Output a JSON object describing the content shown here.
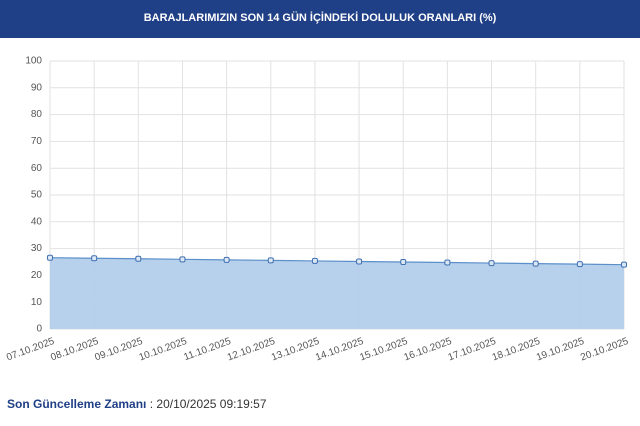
{
  "chart_data": {
    "type": "area",
    "title": "BARAJLARIMIZIN SON 14 GÜN İÇİNDEKİ DOLULUK ORANLARI (%)",
    "categories": [
      "07.10.2025",
      "08.10.2025",
      "09.10.2025",
      "10.10.2025",
      "11.10.2025",
      "12.10.2025",
      "13.10.2025",
      "14.10.2025",
      "15.10.2025",
      "16.10.2025",
      "17.10.2025",
      "18.10.2025",
      "19.10.2025",
      "20.10.2025"
    ],
    "values": [
      26.6,
      26.4,
      26.2,
      26.0,
      25.8,
      25.6,
      25.4,
      25.2,
      25.0,
      24.8,
      24.6,
      24.4,
      24.2,
      24.0
    ],
    "color": "#5b8fc9",
    "fill": "#b3cfec",
    "ylim": [
      0,
      100
    ],
    "yticks": [
      0,
      10,
      20,
      30,
      40,
      50,
      60,
      70,
      80,
      90,
      100
    ],
    "grid": true
  },
  "footer": {
    "label": "Son Güncelleme Zamanı",
    "separator": ":",
    "value": "20/10/2025 09:19:57"
  }
}
